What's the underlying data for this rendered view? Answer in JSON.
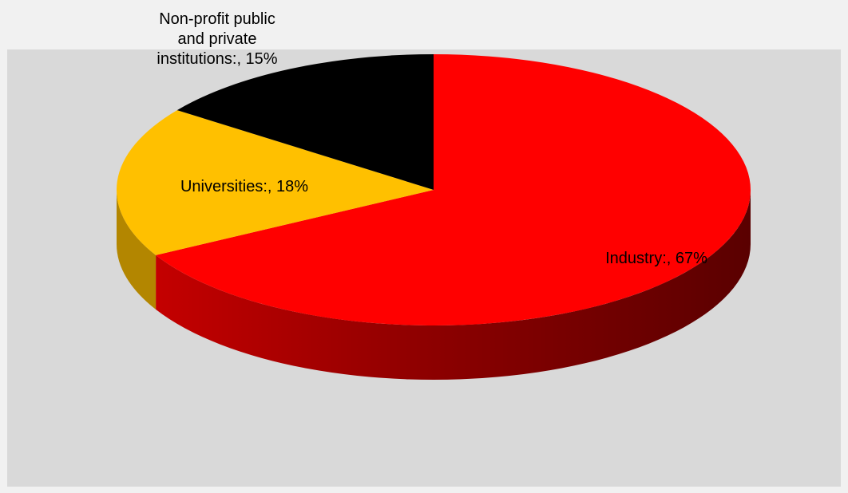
{
  "chart_data": {
    "type": "pie",
    "style": "3d",
    "slices": [
      {
        "label": "Industry:, 67%",
        "category": "Industry",
        "value": 67,
        "color": "#ff0000",
        "side_color": "#8a0000"
      },
      {
        "label": "Universities:, 18%",
        "category": "Universities",
        "value": 18,
        "color": "#ffc000",
        "side_color": "#b38600"
      },
      {
        "label": "Non-profit public and private institutions:, 15%",
        "label_lines": [
          "Non-profit public",
          "and private",
          "institutions:, 15%"
        ],
        "category": "Non-profit public and private institutions",
        "value": 15,
        "color": "#000000",
        "side_color": "#000000"
      }
    ],
    "start": "12 o'clock",
    "direction": "clockwise",
    "title": "",
    "legend": "none"
  }
}
